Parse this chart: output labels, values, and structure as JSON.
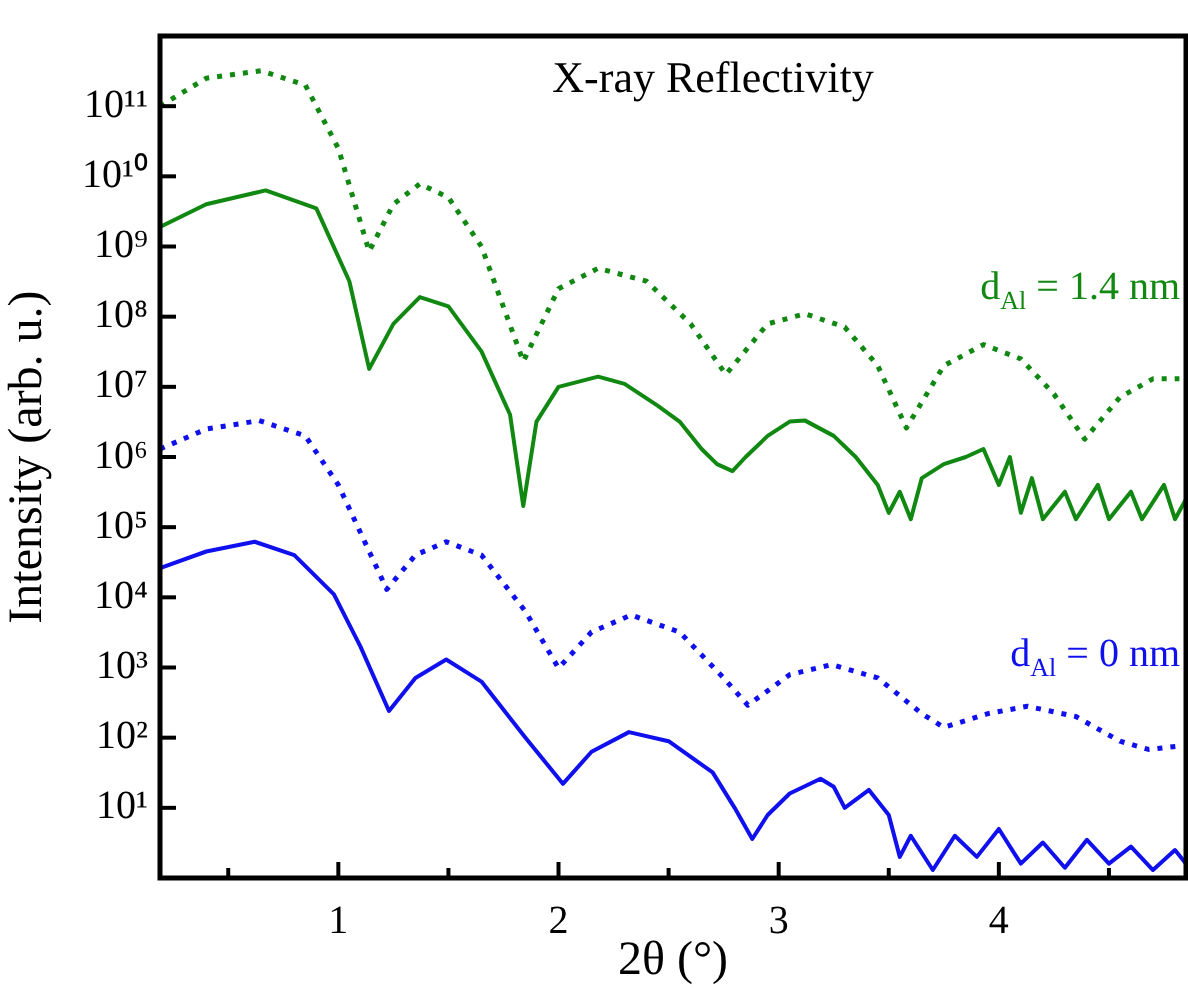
{
  "chart_data": {
    "type": "line",
    "title": "X-ray Reflectivity",
    "xlabel": "2θ (°)",
    "ylabel": "Intensity (arb. u.)",
    "log": "y",
    "grid": false,
    "legend": false,
    "marker": "none",
    "xlim": [
      0.19,
      4.85
    ],
    "xticks": [
      {
        "value": 0.5,
        "label": null
      },
      1,
      {
        "value": 1.5,
        "label": null
      },
      2,
      {
        "value": 2.5,
        "label": null
      },
      3,
      {
        "value": 3.5,
        "label": null
      },
      4,
      {
        "value": 4.5,
        "label": null
      }
    ],
    "ylim": [
      1,
      1000000000000.0
    ],
    "yticks": [
      {
        "value": 10,
        "label": "10¹"
      },
      {
        "value": 100,
        "label": "10²"
      },
      {
        "value": 1000,
        "label": "10³"
      },
      {
        "value": 10000,
        "label": "10⁴"
      },
      {
        "value": 100000,
        "label": "10⁵"
      },
      {
        "value": 1000000,
        "label": "10⁶"
      },
      {
        "value": 10000000,
        "label": "10⁷"
      },
      {
        "value": 100000000,
        "label": "10⁸"
      },
      {
        "value": 1000000000,
        "label": "10⁹"
      },
      {
        "value": 10000000000,
        "label": "10¹⁰"
      },
      {
        "value": 100000000000,
        "label": "10¹¹"
      }
    ],
    "series": [
      {
        "name": "d$_{Al}$ = 1.4 nm",
        "color": "#118811",
        "line_style": "dotted",
        "x": [
          0.19,
          0.4,
          0.65,
          0.85,
          1.0,
          1.14,
          1.25,
          1.37,
          1.5,
          1.65,
          1.84,
          2.0,
          2.18,
          2.4,
          2.6,
          2.76,
          2.95,
          3.12,
          3.3,
          3.45,
          3.58,
          3.75,
          3.93,
          4.1,
          4.25,
          4.39,
          4.55,
          4.7,
          4.82
        ],
        "values": [
          100000000000.0,
          250000000000.0,
          320000000000.0,
          200000000000.0,
          25000000000.0,
          850000000.0,
          4000000000.0,
          7800000000.0,
          5000000000.0,
          1000000000.0,
          23000000.0,
          250000000.0,
          490000000.0,
          320000000.0,
          79000000.0,
          15000000.0,
          79000000.0,
          110000000.0,
          71000000.0,
          20000000.0,
          2600000.0,
          20000000.0,
          40000000.0,
          25000000.0,
          7900000.0,
          1800000.0,
          7100000.0,
          13000000.0,
          13000000.0
        ]
      },
      {
        "color": "#118811",
        "line_style": "solid",
        "x": [
          0.19,
          0.4,
          0.67,
          0.9,
          1.05,
          1.14,
          1.25,
          1.37,
          1.5,
          1.65,
          1.78,
          1.84,
          1.9,
          2.0,
          2.18,
          2.3,
          2.45,
          2.55,
          2.65,
          2.72,
          2.79,
          2.85,
          2.95,
          3.05,
          3.12,
          3.25,
          3.35,
          3.45,
          3.5,
          3.55,
          3.6,
          3.65,
          3.75,
          3.85,
          3.93,
          4.0,
          4.05,
          4.1,
          4.15,
          4.2,
          4.3,
          4.35,
          4.45,
          4.5,
          4.6,
          4.65,
          4.75,
          4.8,
          4.85
        ],
        "values": [
          1900000000.0,
          4000000000.0,
          6300000000.0,
          3500000000.0,
          320000000.0,
          18000000.0,
          79000000.0,
          190000000.0,
          140000000.0,
          32000000.0,
          4000000.0,
          200000.0,
          3200000.0,
          10000000.0,
          14000000.0,
          11000000.0,
          5400000.0,
          3200000.0,
          1300000.0,
          790000.0,
          630000.0,
          1000000.0,
          2000000.0,
          3200000.0,
          3300000.0,
          2000000.0,
          1000000.0,
          400000.0,
          160000.0,
          320000.0,
          130000.0,
          500000.0,
          790000.0,
          1000000.0,
          1300000.0,
          400000.0,
          1000000.0,
          160000.0,
          500000.0,
          130000.0,
          320000.0,
          130000.0,
          400000.0,
          130000.0,
          320000.0,
          130000.0,
          400000.0,
          130000.0,
          250000.0
        ]
      },
      {
        "name": "d$_{Al}$ = 0 nm",
        "color": "#1010ee",
        "line_style": "dotted",
        "x": [
          0.19,
          0.4,
          0.64,
          0.85,
          1.0,
          1.22,
          1.35,
          1.49,
          1.65,
          1.85,
          2.0,
          2.15,
          2.33,
          2.55,
          2.75,
          2.86,
          3.05,
          3.24,
          3.45,
          3.65,
          3.75,
          3.95,
          4.13,
          4.35,
          4.55,
          4.68,
          4.82
        ],
        "values": [
          1300000.0,
          2500000.0,
          3300000.0,
          2000000.0,
          400000.0,
          13000.0,
          40000.0,
          62000.0,
          40000.0,
          6300.0,
          980.0,
          3200.0,
          5600.0,
          3200.0,
          710.0,
          290.0,
          790.0,
          1100.0,
          710.0,
          220.0,
          140.0,
          220.0,
          280.0,
          200.0,
          89,
          68,
          76
        ]
      },
      {
        "color": "#1010ee",
        "line_style": "solid",
        "x": [
          0.19,
          0.4,
          0.62,
          0.8,
          0.98,
          1.1,
          1.23,
          1.35,
          1.49,
          1.65,
          1.85,
          2.02,
          2.15,
          2.32,
          2.5,
          2.7,
          2.8,
          2.88,
          2.95,
          3.05,
          3.19,
          3.25,
          3.3,
          3.41,
          3.5,
          3.55,
          3.6,
          3.7,
          3.8,
          3.9,
          4.0,
          4.1,
          4.2,
          4.3,
          4.4,
          4.5,
          4.6,
          4.7,
          4.8,
          4.85
        ],
        "values": [
          26000.0,
          45000.0,
          62000.0,
          40000.0,
          11000.0,
          2000.0,
          240.0,
          710.0,
          1300.0,
          630.0,
          100.0,
          22,
          63,
          120.0,
          89,
          32,
          10,
          3.6,
          7.9,
          16,
          26,
          20,
          10,
          18,
          7.9,
          2.0,
          4.0,
          1.3,
          4.0,
          2.0,
          5.0,
          1.6,
          3.2,
          1.4,
          3.5,
          1.6,
          2.8,
          1.3,
          2.5,
          1.6
        ]
      }
    ]
  }
}
